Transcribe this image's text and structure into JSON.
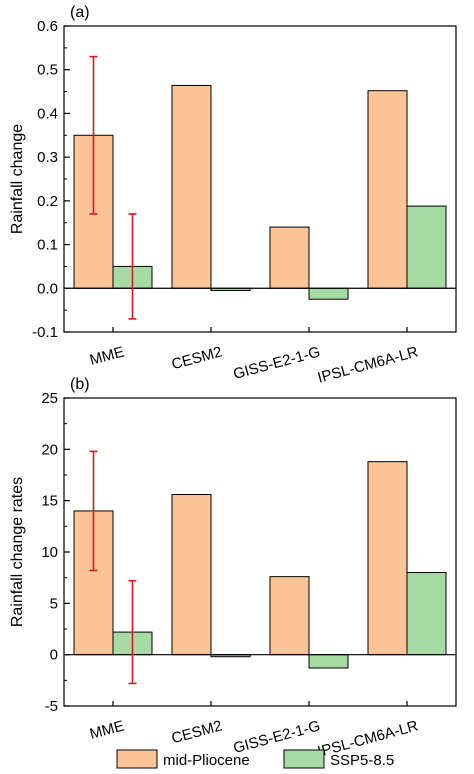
{
  "colors": {
    "mid_pliocene": "#FBC497",
    "ssp585": "#A6DBA6",
    "error_bar": "#D71920",
    "axis": "#000000"
  },
  "legend": {
    "items": [
      {
        "label": "mid-Pliocene",
        "color": "#FBC497"
      },
      {
        "label": "SSP5-8.5",
        "color": "#A6DBA6"
      }
    ]
  },
  "chart_data": [
    {
      "panel_label": "(a)",
      "type": "bar",
      "ylabel": "Rainfall change",
      "xlabel": "",
      "categories": [
        "MME",
        "CESM2",
        "GISS-E2-1-G",
        "IPSL-CM6A-LR"
      ],
      "series": [
        {
          "name": "mid-Pliocene",
          "values": [
            0.35,
            0.464,
            0.14,
            0.452
          ]
        },
        {
          "name": "SSP5-8.5",
          "values": [
            0.05,
            -0.005,
            -0.025,
            0.188
          ]
        }
      ],
      "error_bars": [
        {
          "series": "mid-Pliocene",
          "category": "MME",
          "low": 0.17,
          "high": 0.53
        },
        {
          "series": "SSP5-8.5",
          "category": "MME",
          "low": -0.07,
          "high": 0.17
        }
      ],
      "ylim": [
        -0.1,
        0.6
      ],
      "yticks": [
        -0.1,
        0.0,
        0.1,
        0.2,
        0.3,
        0.4,
        0.5,
        0.6
      ],
      "ytick_labels": [
        "-0.1",
        "0.0",
        "0.1",
        "0.2",
        "0.3",
        "0.4",
        "0.5",
        "0.6"
      ],
      "grid": false
    },
    {
      "panel_label": "(b)",
      "type": "bar",
      "ylabel": "Rainfall change rates",
      "xlabel": "",
      "categories": [
        "MME",
        "CESM2",
        "GISS-E2-1-G",
        "IPSL-CM6A-LR"
      ],
      "series": [
        {
          "name": "mid-Pliocene",
          "values": [
            14.0,
            15.6,
            7.6,
            18.8
          ]
        },
        {
          "name": "SSP5-8.5",
          "values": [
            2.2,
            -0.2,
            -1.3,
            8.0
          ]
        }
      ],
      "error_bars": [
        {
          "series": "mid-Pliocene",
          "category": "MME",
          "low": 8.2,
          "high": 19.8
        },
        {
          "series": "SSP5-8.5",
          "category": "MME",
          "low": -2.8,
          "high": 7.2
        }
      ],
      "ylim": [
        -5,
        25
      ],
      "yticks": [
        -5,
        0,
        5,
        10,
        15,
        20,
        25
      ],
      "ytick_labels": [
        "-5",
        "0",
        "5",
        "10",
        "15",
        "20",
        "25"
      ],
      "grid": false
    }
  ]
}
